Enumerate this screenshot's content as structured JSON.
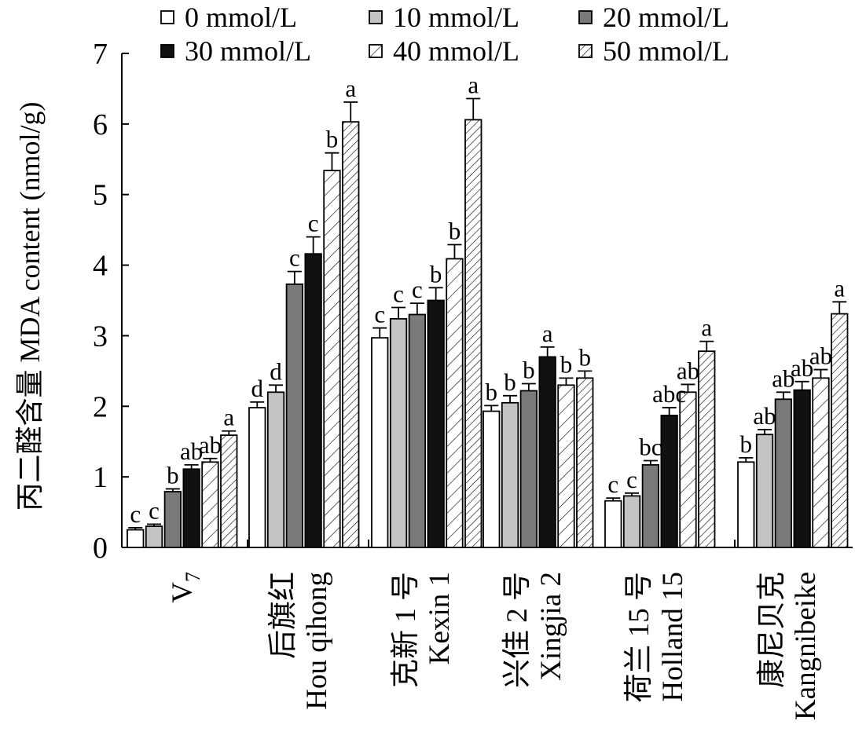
{
  "chart_data": {
    "type": "bar",
    "ylabel": "丙二醛含量 MDA content (nmol/g)",
    "ylim": [
      0,
      7
    ],
    "yticks": [
      "0",
      "1",
      "2",
      "3",
      "4",
      "5",
      "6",
      "7"
    ],
    "grid": false,
    "legend_position": "top",
    "categories": [
      {
        "zh": "V",
        "sub": "7",
        "en": ""
      },
      {
        "zh": "后旗红",
        "en": "Hou qihong"
      },
      {
        "zh": "克新 1 号",
        "en": "Kexin 1"
      },
      {
        "zh": "兴佳 2 号",
        "en": "Xingjia 2"
      },
      {
        "zh": "荷兰 15 号",
        "en": "Holland 15"
      },
      {
        "zh": "康尼贝克",
        "en": "Kangnibeike"
      }
    ],
    "series": [
      {
        "name": "0 mmol/L",
        "fill": "#ffffff",
        "pattern": "none",
        "values": [
          0.25,
          1.98,
          2.97,
          1.93,
          0.66,
          1.21
        ],
        "errors": [
          0.03,
          0.08,
          0.14,
          0.08,
          0.04,
          0.06
        ],
        "letters": [
          "c",
          "d",
          "c",
          "b",
          "c",
          "b"
        ]
      },
      {
        "name": "10 mmol/L",
        "fill": "#c4c4c4",
        "pattern": "none",
        "values": [
          0.3,
          2.2,
          3.24,
          2.05,
          0.73,
          1.6
        ],
        "errors": [
          0.03,
          0.1,
          0.16,
          0.1,
          0.04,
          0.07
        ],
        "letters": [
          "c",
          "d",
          "c",
          "b",
          "c",
          "ab"
        ]
      },
      {
        "name": "20 mmol/L",
        "fill": "#7a7a7a",
        "pattern": "none",
        "values": [
          0.79,
          3.73,
          3.3,
          2.22,
          1.17,
          2.1
        ],
        "errors": [
          0.04,
          0.18,
          0.16,
          0.1,
          0.06,
          0.1
        ],
        "letters": [
          "b",
          "c",
          "c",
          "b",
          "bc",
          "ab"
        ]
      },
      {
        "name": "30 mmol/L",
        "fill": "#111111",
        "pattern": "none",
        "values": [
          1.11,
          4.16,
          3.5,
          2.7,
          1.87,
          2.23
        ],
        "errors": [
          0.06,
          0.24,
          0.18,
          0.14,
          0.11,
          0.12
        ],
        "letters": [
          "ab",
          "c",
          "b",
          "a",
          "abc",
          "ab"
        ]
      },
      {
        "name": "40 mmol/L",
        "fill": "#ffffff",
        "pattern": "sparse-diagonal",
        "values": [
          1.21,
          5.34,
          4.09,
          2.3,
          2.2,
          2.4
        ],
        "errors": [
          0.05,
          0.25,
          0.2,
          0.1,
          0.11,
          0.12
        ],
        "letters": [
          "ab",
          "b",
          "b",
          "b",
          "ab",
          "ab"
        ]
      },
      {
        "name": "50 mmol/L",
        "fill": "#ffffff",
        "pattern": "dense-diagonal",
        "values": [
          1.59,
          6.03,
          6.06,
          2.4,
          2.78,
          3.31
        ],
        "errors": [
          0.06,
          0.28,
          0.3,
          0.1,
          0.14,
          0.17
        ],
        "letters": [
          "a",
          "a",
          "a",
          "b",
          "a",
          "a"
        ]
      }
    ]
  }
}
